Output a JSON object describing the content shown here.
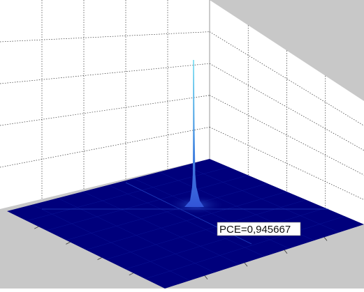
{
  "chart_data": {
    "type": "surface",
    "title": "",
    "xlabel": "",
    "ylabel": "",
    "zlabel": "",
    "grid": true,
    "peak": {
      "x": 0,
      "y": 0,
      "z": 1.0
    },
    "annotation": "PCE=0,945667",
    "colors": {
      "background": "#c8c8c8",
      "pane": "#ffffff",
      "grid": "#333333",
      "surface": "#00007c",
      "peak_top": "#5fd6ee",
      "peak_base": "#3355d8"
    }
  }
}
